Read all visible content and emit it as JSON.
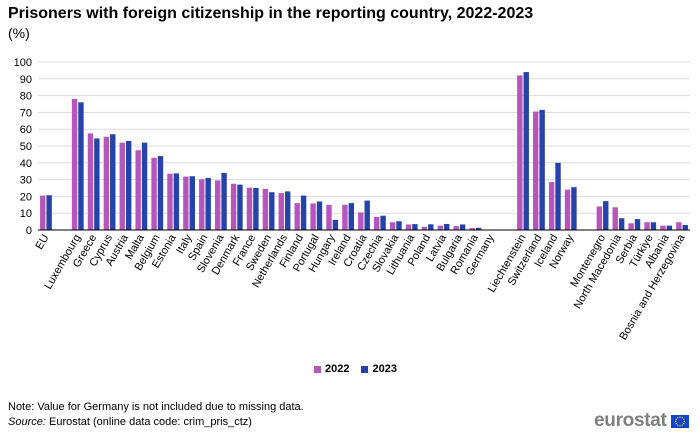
{
  "title": "Prisoners with foreign citizenship in the reporting country, 2022-2023",
  "subtitle": "(%)",
  "note": "Note: Value for Germany is not included due to missing data.",
  "source": {
    "label": "Source:",
    "text": "Eurostat (online data code: crim_pris_ctz)"
  },
  "logo_text": "eurostat",
  "colors": {
    "series_2022": "#b656bd",
    "series_2023": "#2644a7",
    "grid": "#dcdcdc",
    "axis": "#000000"
  },
  "chart_data": {
    "type": "bar",
    "title": "Prisoners with foreign citizenship in the reporting country, 2022-2023",
    "subtitle": "(%)",
    "ylim": [
      0,
      100
    ],
    "yticks": [
      0,
      10,
      20,
      30,
      40,
      50,
      60,
      70,
      80,
      90,
      100
    ],
    "grid": true,
    "legend_position": "bottom-center",
    "categories": [
      "EU",
      "",
      "Luxembourg",
      "Greece",
      "Cyprus",
      "Austria",
      "Malta",
      "Belgium",
      "Estonia",
      "Italy",
      "Spain",
      "Slovenia",
      "Denmark",
      "France",
      "Sweden",
      "Netherlands",
      "Finland",
      "Portugal",
      "Hungary",
      "Ireland",
      "Croatia",
      "Czechia",
      "Slovakia",
      "Lithuania",
      "Poland",
      "Latvia",
      "Bulgaria",
      "Romania",
      "Germany",
      "",
      "Liechtenstein",
      "Switzerland",
      "Iceland",
      "Norway",
      "",
      "Montenegro",
      "North Macedonia",
      "Serbia",
      "Türkiye",
      "Albania",
      "Bosnia and Herzegovina"
    ],
    "series": [
      {
        "name": "2022",
        "values": [
          20.5,
          null,
          78,
          57.5,
          55.5,
          52,
          47.5,
          43,
          33.5,
          31.8,
          30.2,
          29.5,
          27.5,
          25.2,
          24.5,
          22,
          16,
          15.8,
          15,
          15,
          10.5,
          7.8,
          4.6,
          3.3,
          1.9,
          2.6,
          2.3,
          1.2,
          null,
          null,
          92,
          70.5,
          28.5,
          24,
          null,
          14,
          13.5,
          4,
          4.6,
          2.6,
          4.6
        ]
      },
      {
        "name": "2023",
        "values": [
          20.7,
          null,
          76,
          54.5,
          57,
          53,
          52,
          44,
          33.7,
          32,
          31,
          34,
          27,
          25,
          22.5,
          23,
          20.5,
          17,
          6,
          16,
          17.5,
          8.5,
          5.2,
          3.5,
          3.4,
          3.6,
          3.3,
          1.3,
          null,
          null,
          94,
          71.5,
          40,
          25.5,
          null,
          17.2,
          7,
          6.5,
          4.6,
          2.6,
          3
        ]
      }
    ]
  }
}
